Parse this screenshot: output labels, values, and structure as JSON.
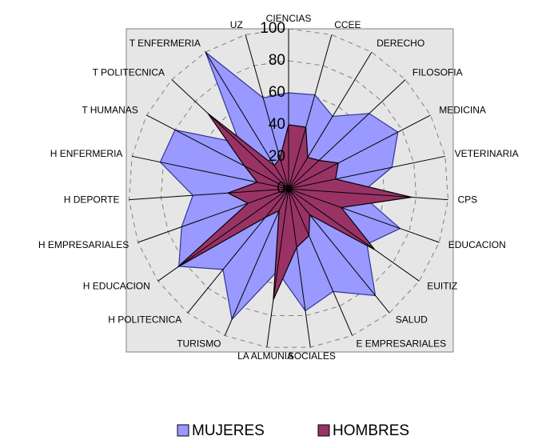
{
  "chart_data": {
    "type": "radar",
    "categories": [
      "CIENCIAS",
      "CCEE",
      "DERECHO",
      "FILOSOFIA",
      "MEDICINA",
      "VETERINARIA",
      "CPS",
      "EDUCACION",
      "EUITIZ",
      "SALUD",
      "E EMPRESARIALES",
      "SOCIALES",
      "LA ALMUNIA",
      "TURISMO",
      "H POLITECNICA",
      "H EDUCACION",
      "H EMPRESARIALES",
      "H DEPORTE",
      "H ENFERMERIA",
      "T HUMANAS",
      "T POLITECNICA",
      "T ENFERMERIA",
      "UZ"
    ],
    "series": [
      {
        "name": "MUJERES",
        "color": "#9999ff",
        "values": [
          60,
          61,
          53,
          69,
          77,
          66,
          45,
          74,
          60,
          86,
          70,
          77,
          52,
          89,
          65,
          84,
          71,
          60,
          82,
          80,
          42,
          100,
          59
        ]
      },
      {
        "name": "HOMBRES",
        "color": "#993366",
        "values": [
          40,
          40,
          23,
          26,
          35,
          30,
          77,
          35,
          66,
          21,
          32,
          37,
          70,
          15,
          23,
          85,
          27,
          38,
          20,
          31,
          69,
          17,
          20
        ]
      }
    ],
    "ylim": [
      0,
      100
    ],
    "yticks": [
      0,
      20,
      40,
      60,
      80,
      100
    ],
    "grid": true,
    "legend": "bottom"
  }
}
